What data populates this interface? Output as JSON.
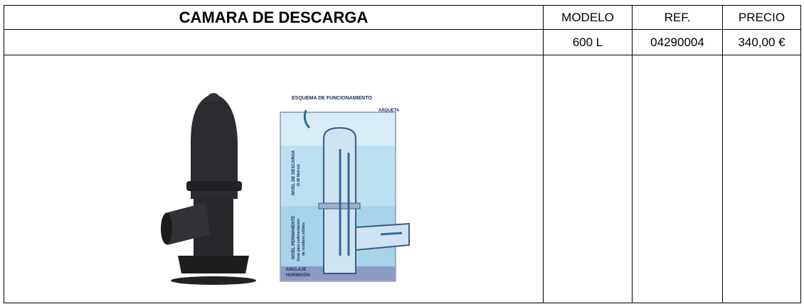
{
  "table": {
    "header": [
      "CAMARA DE DESCARGA",
      "MODELO",
      "REF.",
      "PRECIO"
    ],
    "rows": [
      [
        "600 L",
        "04290004",
        "340,00 €"
      ]
    ]
  },
  "diagram": {
    "title": "ESQUEMA DE FUNCIONAMIENTO",
    "labels": [
      "ARQUETA",
      "NIVEL DE DESCARGA",
      "(0.28 Metros)",
      "NIVEL PERMANENTE",
      "Zona para sedimentación",
      "de residuos sólidos",
      "ANCLAJE",
      "HORMIGÓN"
    ]
  }
}
